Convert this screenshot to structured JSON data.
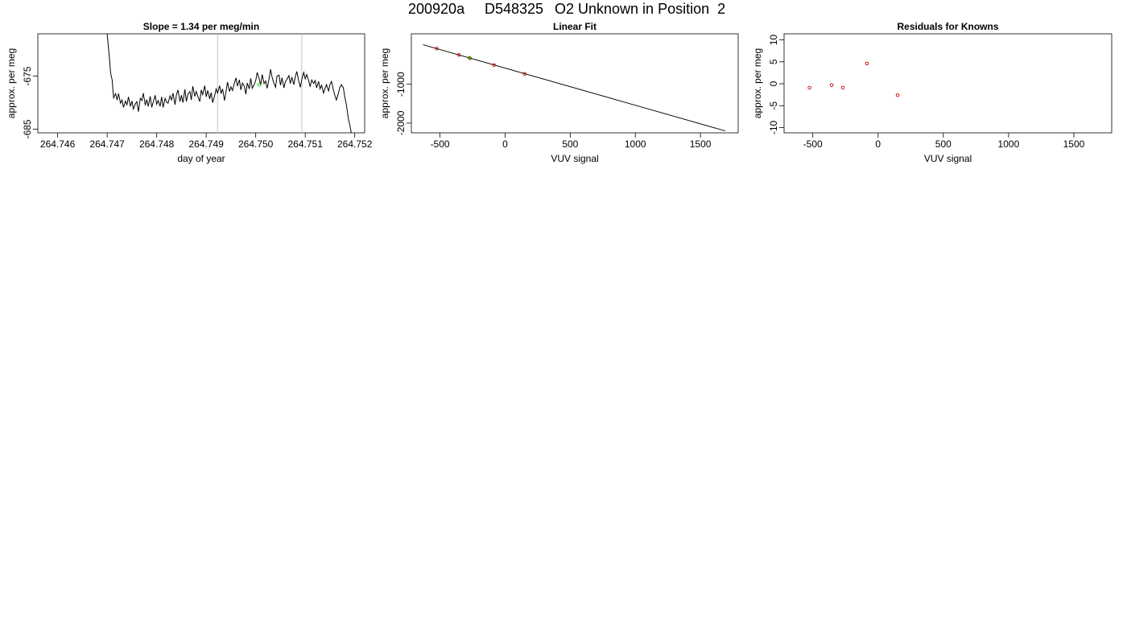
{
  "figure": {
    "title_parts": [
      "200920a",
      "D548325",
      "O2 Unknown in Position  2"
    ]
  },
  "chart_data": [
    {
      "type": "line",
      "title": "Slope =  1.34  per meg/min",
      "xlabel": "day of year",
      "ylabel": "approx. per meg",
      "xlim": [
        264.7456,
        264.7522
      ],
      "ylim": [
        -685.7,
        -667.0
      ],
      "xticks": [
        "264.746",
        "264.747",
        "264.748",
        "264.749",
        "264.750",
        "264.751",
        "264.752"
      ],
      "yticks": [
        "-675",
        "-685"
      ],
      "yticks_values": [
        -675,
        -685
      ],
      "grid": false,
      "vlines": [
        264.74923,
        264.75093
      ],
      "vline_color": "#cccccc",
      "line_color": "#000000",
      "series": [
        {
          "values": [
            [
              264.747,
              -667.0
            ],
            [
              264.74704,
              -671.0
            ],
            [
              264.74707,
              -674.4
            ],
            [
              264.7471,
              -675.7
            ],
            [
              264.74713,
              -679.1
            ],
            [
              264.74717,
              -678.3
            ],
            [
              264.7472,
              -679.5
            ],
            [
              264.74723,
              -678.3
            ],
            [
              264.74727,
              -680.1
            ],
            [
              264.7473,
              -679.5
            ],
            [
              264.74733,
              -680.9
            ],
            [
              264.74737,
              -679.7
            ],
            [
              264.7474,
              -680.4
            ],
            [
              264.74743,
              -678.9
            ],
            [
              264.74747,
              -680.7
            ],
            [
              264.7475,
              -679.7
            ],
            [
              264.74753,
              -681.2
            ],
            [
              264.74757,
              -680.2
            ],
            [
              264.7476,
              -679.8
            ],
            [
              264.74763,
              -681.7
            ],
            [
              264.74767,
              -679.2
            ],
            [
              264.7477,
              -679.6
            ],
            [
              264.74773,
              -678.2
            ],
            [
              264.74777,
              -680.5
            ],
            [
              264.7478,
              -679.4
            ],
            [
              264.74783,
              -680.7
            ],
            [
              264.74787,
              -678.8
            ],
            [
              264.7479,
              -680.9
            ],
            [
              264.74793,
              -679.9
            ],
            [
              264.74797,
              -678.6
            ],
            [
              264.748,
              -680.3
            ],
            [
              264.74803,
              -679.6
            ],
            [
              264.74807,
              -680.7
            ],
            [
              264.7481,
              -678.9
            ],
            [
              264.74813,
              -680.9
            ],
            [
              264.74817,
              -679.2
            ],
            [
              264.7482,
              -679.9
            ],
            [
              264.74823,
              -680.1
            ],
            [
              264.74827,
              -678.7
            ],
            [
              264.7483,
              -679.5
            ],
            [
              264.74833,
              -678.2
            ],
            [
              264.74837,
              -680.4
            ],
            [
              264.7484,
              -678.5
            ],
            [
              264.74843,
              -677.6
            ],
            [
              264.74847,
              -679.8
            ],
            [
              264.7485,
              -678.6
            ],
            [
              264.74853,
              -680.0
            ],
            [
              264.74857,
              -677.5
            ],
            [
              264.7486,
              -679.8
            ],
            [
              264.74863,
              -678.4
            ],
            [
              264.74867,
              -677.9
            ],
            [
              264.7487,
              -679.5
            ],
            [
              264.74873,
              -676.9
            ],
            [
              264.74877,
              -678.8
            ],
            [
              264.7488,
              -677.9
            ],
            [
              264.74883,
              -678.8
            ],
            [
              264.74887,
              -679.8
            ],
            [
              264.7489,
              -677.6
            ],
            [
              264.74893,
              -678.5
            ],
            [
              264.74897,
              -676.8
            ],
            [
              264.749,
              -678.9
            ],
            [
              264.74903,
              -677.7
            ],
            [
              264.74907,
              -679.3
            ],
            [
              264.7491,
              -678.1
            ],
            [
              264.74913,
              -680.0
            ],
            [
              264.74917,
              -678.7
            ],
            [
              264.7492,
              -677.4
            ],
            [
              264.74923,
              -678.2
            ],
            [
              264.74927,
              -676.8
            ],
            [
              264.7493,
              -678.3
            ],
            [
              264.74933,
              -677.4
            ],
            [
              264.74937,
              -679.6
            ],
            [
              264.7494,
              -677.9
            ],
            [
              264.74943,
              -676.1
            ],
            [
              264.74947,
              -677.9
            ],
            [
              264.7495,
              -677.0
            ],
            [
              264.74953,
              -677.7
            ],
            [
              264.74957,
              -676.3
            ],
            [
              264.7496,
              -675.3
            ],
            [
              264.74963,
              -676.9
            ],
            [
              264.74967,
              -675.7
            ],
            [
              264.7497,
              -677.6
            ],
            [
              264.74973,
              -676.3
            ],
            [
              264.74977,
              -676.9
            ],
            [
              264.7498,
              -678.4
            ],
            [
              264.74983,
              -676.3
            ],
            [
              264.74987,
              -677.4
            ],
            [
              264.7499,
              -675.4
            ],
            [
              264.74993,
              -677.3
            ],
            [
              264.74997,
              -676.6
            ],
            [
              264.75,
              -675.8
            ],
            [
              264.75003,
              -674.3
            ],
            [
              264.75007,
              -675.5
            ],
            [
              264.7501,
              -676.7
            ],
            [
              264.75013,
              -674.7
            ],
            [
              264.75017,
              -676.4
            ],
            [
              264.7502,
              -675.9
            ],
            [
              264.75023,
              -677.3
            ],
            [
              264.75027,
              -675.5
            ],
            [
              264.7503,
              -673.7
            ],
            [
              264.75033,
              -675.2
            ],
            [
              264.75037,
              -676.4
            ],
            [
              264.7504,
              -677.1
            ],
            [
              264.75043,
              -675.0
            ],
            [
              264.75047,
              -674.8
            ],
            [
              264.7505,
              -676.7
            ],
            [
              264.75053,
              -675.3
            ],
            [
              264.75057,
              -677.2
            ],
            [
              264.7506,
              -676.0
            ],
            [
              264.75063,
              -675.6
            ],
            [
              264.75067,
              -674.9
            ],
            [
              264.7507,
              -676.4
            ],
            [
              264.75073,
              -675.2
            ],
            [
              264.75077,
              -676.6
            ],
            [
              264.7508,
              -675.1
            ],
            [
              264.75083,
              -674.1
            ],
            [
              264.75087,
              -676.0
            ],
            [
              264.7509,
              -677.1
            ],
            [
              264.75093,
              -675.6
            ],
            [
              264.75097,
              -674.3
            ],
            [
              264.751,
              -675.5
            ],
            [
              264.75103,
              -674.7
            ],
            [
              264.75107,
              -675.9
            ],
            [
              264.7511,
              -677.0
            ],
            [
              264.75113,
              -675.7
            ],
            [
              264.75117,
              -676.4
            ],
            [
              264.7512,
              -675.8
            ],
            [
              264.75123,
              -677.2
            ],
            [
              264.75127,
              -676.0
            ],
            [
              264.7513,
              -677.4
            ],
            [
              264.75133,
              -676.7
            ],
            [
              264.75137,
              -678.2
            ],
            [
              264.7514,
              -677.3
            ],
            [
              264.75143,
              -676.6
            ],
            [
              264.75147,
              -677.8
            ],
            [
              264.7515,
              -676.6
            ],
            [
              264.75153,
              -676.0
            ],
            [
              264.75157,
              -677.6
            ],
            [
              264.7516,
              -678.7
            ],
            [
              264.75163,
              -679.5
            ],
            [
              264.75167,
              -678.2
            ],
            [
              264.7517,
              -677.1
            ],
            [
              264.75173,
              -676.6
            ],
            [
              264.75177,
              -677.2
            ],
            [
              264.7518,
              -679.0
            ],
            [
              264.75183,
              -680.3
            ],
            [
              264.75187,
              -683.0
            ],
            [
              264.7519,
              -684.2
            ],
            [
              264.75193,
              -685.7
            ]
          ]
        }
      ],
      "markers": [
        {
          "x": 264.75007,
          "y": -676.6,
          "color": "#00cc00"
        }
      ]
    },
    {
      "type": "scatter",
      "title": "Linear Fit",
      "xlabel": "VUV signal",
      "ylabel": "approx. per meg",
      "xlim": [
        -720,
        1790
      ],
      "ylim": [
        -2250,
        300
      ],
      "xticks": [
        "-500",
        "0",
        "500",
        "1000",
        "1500"
      ],
      "xticks_values": [
        -500,
        0,
        500,
        1000,
        1500
      ],
      "yticks": [
        "-1000",
        "-2000"
      ],
      "yticks_values": [
        -1000,
        -2000
      ],
      "fit_line": [
        [
          -630,
          20
        ],
        [
          1690,
          -2200
        ]
      ],
      "points": [
        {
          "x": -525,
          "y": -80,
          "color": "#cc0000"
        },
        {
          "x": -355,
          "y": -245,
          "color": "#cc0000"
        },
        {
          "x": -270,
          "y": -330,
          "color": "#cc0000"
        },
        {
          "x": -85,
          "y": -505,
          "color": "#cc0000"
        },
        {
          "x": 150,
          "y": -735,
          "color": "#cc0000"
        },
        {
          "x": -275,
          "y": -320,
          "color": "#00cc00"
        }
      ]
    },
    {
      "type": "scatter",
      "title": "Residuals for Knowns",
      "xlabel": "VUV signal",
      "ylabel": "approx. per meg",
      "xlim": [
        -720,
        1790
      ],
      "ylim": [
        -11.2,
        11.4
      ],
      "xticks": [
        "-500",
        "0",
        "500",
        "1000",
        "1500"
      ],
      "xticks_values": [
        -500,
        0,
        500,
        1000,
        1500
      ],
      "yticks": [
        "10",
        "5",
        "0",
        "-5",
        "-10"
      ],
      "yticks_values": [
        10,
        5,
        0,
        -5,
        -10
      ],
      "points": [
        {
          "x": -525,
          "y": -0.9,
          "color": "#cc0000"
        },
        {
          "x": -355,
          "y": -0.3,
          "color": "#cc0000"
        },
        {
          "x": -270,
          "y": -0.9,
          "color": "#cc0000"
        },
        {
          "x": -85,
          "y": 4.6,
          "color": "#cc0000"
        },
        {
          "x": 150,
          "y": -2.6,
          "color": "#cc0000"
        }
      ]
    }
  ]
}
